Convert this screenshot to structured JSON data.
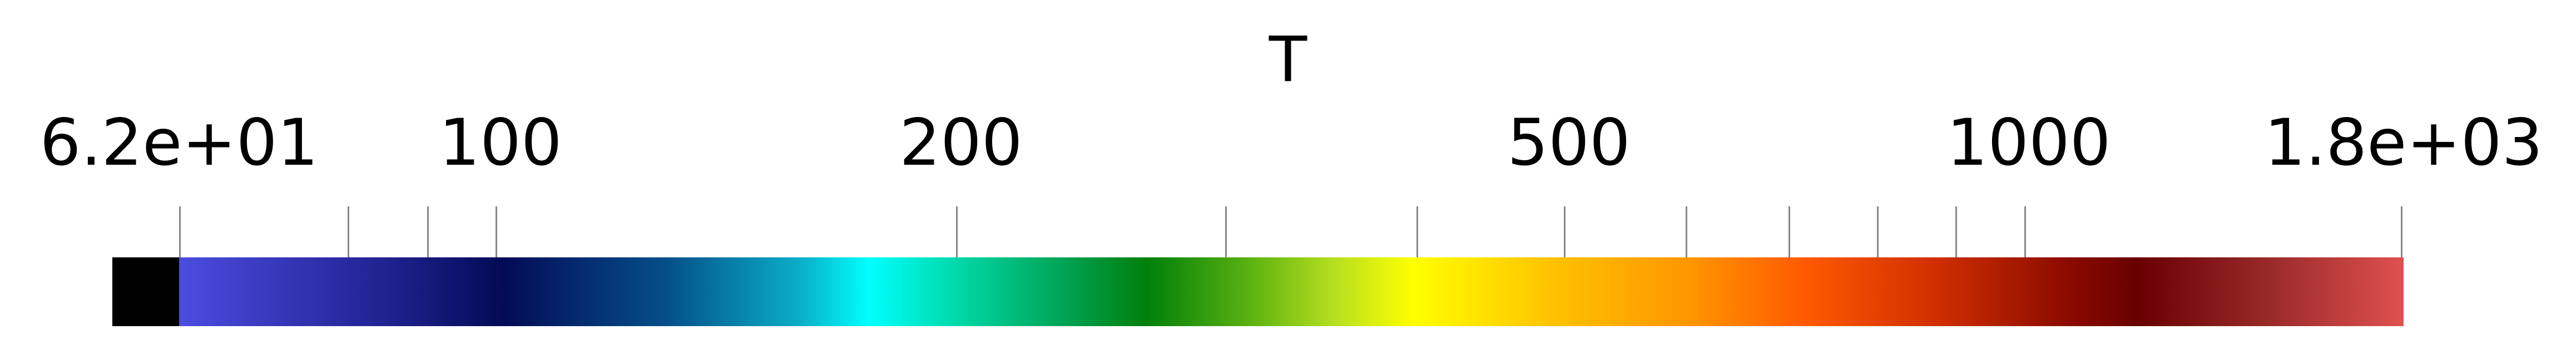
{
  "legend": {
    "title": "T",
    "tick_labels": [
      "6.2e+01",
      "100",
      "200",
      "500",
      "1000",
      "1.8e+03"
    ],
    "range": [
      62,
      1800
    ],
    "scale": "log",
    "nan_color": "#000000",
    "colormap": [
      "#4a4de0",
      "#040a55",
      "#00ffff",
      "#00800a",
      "#ffff00",
      "#ff5a00",
      "#680000",
      "#e05050"
    ]
  }
}
